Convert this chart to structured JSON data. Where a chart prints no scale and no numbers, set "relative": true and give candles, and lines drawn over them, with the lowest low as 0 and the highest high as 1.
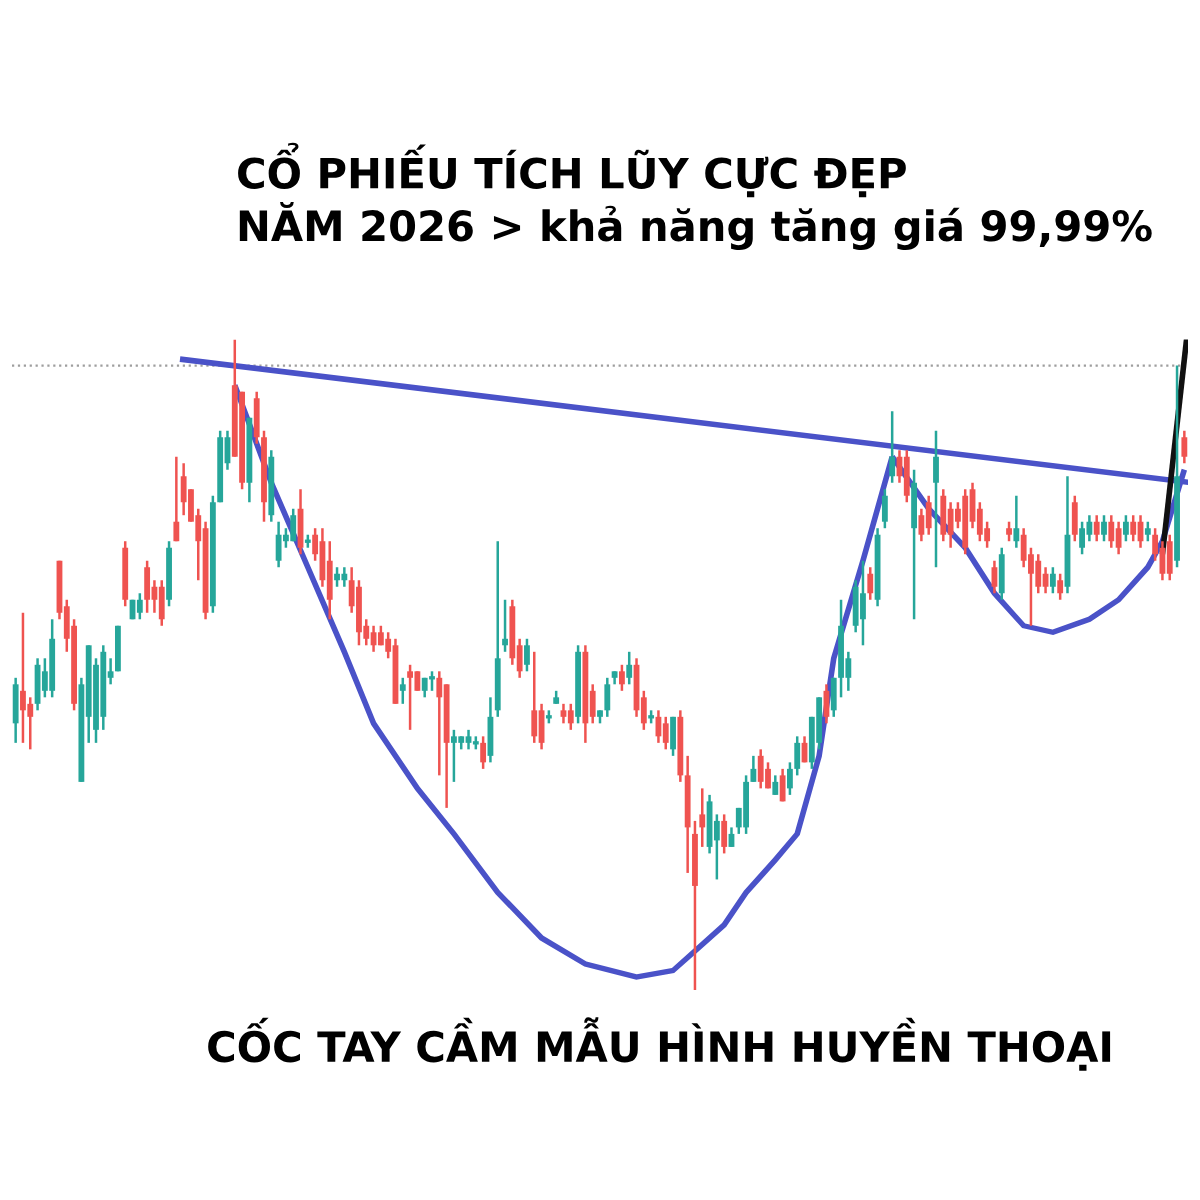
{
  "chart_data": {
    "type": "candlestick",
    "relative": true,
    "tick_labels": false,
    "title": "CỔ PHIẾU TÍCH LŨY CỰC ĐẸP",
    "subtitle": "NĂM 2026 > khả năng tăng giá 99,99%",
    "annotations": [
      "CỐC TAY CẦM MẪU HÌNH HUYỀN THOẠI"
    ],
    "categories": [
      null,
      null,
      null,
      null,
      null,
      null,
      null,
      null,
      null,
      null,
      null,
      null,
      null,
      null,
      null,
      null,
      null,
      null,
      null,
      null,
      null,
      null,
      null,
      null,
      null,
      null,
      null,
      null,
      null,
      null,
      null,
      null,
      null,
      null,
      null,
      null,
      null,
      null,
      null,
      null,
      null,
      null,
      null,
      null,
      null,
      null,
      null,
      null,
      null,
      null,
      null,
      null,
      null,
      null,
      null,
      null,
      null,
      null,
      null,
      null,
      null,
      null,
      null,
      null,
      null,
      null,
      null,
      null,
      null,
      null,
      null,
      null,
      null,
      null,
      null,
      null,
      null,
      null,
      null,
      null,
      null,
      null,
      null,
      null,
      null,
      null,
      null,
      null,
      null,
      null,
      null,
      null,
      null,
      null,
      null,
      null,
      null,
      null,
      null,
      null,
      null,
      null,
      null,
      null,
      null,
      null,
      null,
      null,
      null,
      null,
      null,
      null,
      null,
      null,
      null,
      null,
      null,
      null,
      null,
      null,
      null,
      null,
      null,
      null,
      null,
      null,
      null,
      null,
      null,
      null,
      null,
      null,
      null,
      null,
      null,
      null,
      null,
      null,
      null,
      null,
      null,
      null,
      null,
      null,
      null,
      null,
      null,
      null,
      null,
      null,
      null,
      null,
      null,
      null,
      null,
      null,
      null,
      null,
      null,
      null,
      null
    ],
    "ohlc": [
      [
        0.41,
        0.48,
        0.38,
        0.47
      ],
      [
        0.46,
        0.58,
        0.38,
        0.43
      ],
      [
        0.44,
        0.45,
        0.37,
        0.42
      ],
      [
        0.44,
        0.51,
        0.43,
        0.5
      ],
      [
        0.46,
        0.51,
        0.45,
        0.49
      ],
      [
        0.46,
        0.57,
        0.45,
        0.54
      ],
      [
        0.66,
        0.66,
        0.57,
        0.58
      ],
      [
        0.59,
        0.6,
        0.52,
        0.54
      ],
      [
        0.56,
        0.57,
        0.43,
        0.44
      ],
      [
        0.32,
        0.48,
        0.32,
        0.47
      ],
      [
        0.42,
        0.53,
        0.38,
        0.53
      ],
      [
        0.4,
        0.51,
        0.38,
        0.5
      ],
      [
        0.42,
        0.53,
        0.4,
        0.52
      ],
      [
        0.48,
        0.51,
        0.47,
        0.49
      ],
      [
        0.49,
        0.56,
        0.49,
        0.56
      ],
      [
        0.68,
        0.69,
        0.59,
        0.6
      ],
      [
        0.57,
        0.6,
        0.57,
        0.6
      ],
      [
        0.58,
        0.61,
        0.57,
        0.6
      ],
      [
        0.65,
        0.66,
        0.58,
        0.6
      ],
      [
        0.62,
        0.63,
        0.58,
        0.6
      ],
      [
        0.62,
        0.63,
        0.56,
        0.57
      ],
      [
        0.6,
        0.69,
        0.59,
        0.68
      ],
      [
        0.72,
        0.82,
        0.69,
        0.69
      ],
      [
        0.79,
        0.81,
        0.73,
        0.75
      ],
      [
        0.77,
        0.77,
        0.72,
        0.72
      ],
      [
        0.73,
        0.74,
        0.63,
        0.69
      ],
      [
        0.71,
        0.72,
        0.57,
        0.58
      ],
      [
        0.59,
        0.76,
        0.58,
        0.75
      ],
      [
        0.75,
        0.86,
        0.75,
        0.85
      ],
      [
        0.81,
        0.86,
        0.8,
        0.85
      ],
      [
        0.93,
        1.0,
        0.82,
        0.82
      ],
      [
        0.92,
        0.92,
        0.77,
        0.78
      ],
      [
        0.78,
        0.88,
        0.75,
        0.88
      ],
      [
        0.91,
        0.92,
        0.84,
        0.85
      ],
      [
        0.85,
        0.86,
        0.72,
        0.75
      ],
      [
        0.73,
        0.83,
        0.72,
        0.82
      ],
      [
        0.66,
        0.72,
        0.65,
        0.7
      ],
      [
        0.69,
        0.71,
        0.68,
        0.7
      ],
      [
        0.69,
        0.74,
        0.69,
        0.73
      ],
      [
        0.74,
        0.77,
        0.67,
        0.68
      ],
      [
        0.69,
        0.7,
        0.68,
        0.69
      ],
      [
        0.7,
        0.71,
        0.66,
        0.67
      ],
      [
        0.69,
        0.71,
        0.62,
        0.63
      ],
      [
        0.66,
        0.69,
        0.57,
        0.6
      ],
      [
        0.63,
        0.65,
        0.62,
        0.64
      ],
      [
        0.63,
        0.65,
        0.62,
        0.64
      ],
      [
        0.63,
        0.65,
        0.58,
        0.59
      ],
      [
        0.62,
        0.63,
        0.53,
        0.55
      ],
      [
        0.56,
        0.57,
        0.53,
        0.54
      ],
      [
        0.55,
        0.56,
        0.52,
        0.53
      ],
      [
        0.55,
        0.56,
        0.53,
        0.53
      ],
      [
        0.54,
        0.55,
        0.51,
        0.52
      ],
      [
        0.53,
        0.54,
        0.44,
        0.44
      ],
      [
        0.46,
        0.48,
        0.44,
        0.47
      ],
      [
        0.49,
        0.5,
        0.4,
        0.48
      ],
      [
        0.49,
        0.49,
        0.46,
        0.46
      ],
      [
        0.46,
        0.48,
        0.45,
        0.48
      ],
      [
        0.48,
        0.49,
        0.46,
        0.48
      ],
      [
        0.48,
        0.49,
        0.33,
        0.45
      ],
      [
        0.47,
        0.47,
        0.28,
        0.38
      ],
      [
        0.38,
        0.4,
        0.32,
        0.39
      ],
      [
        0.38,
        0.39,
        0.37,
        0.39
      ],
      [
        0.38,
        0.4,
        0.37,
        0.39
      ],
      [
        0.38,
        0.39,
        0.37,
        0.38
      ],
      [
        0.38,
        0.39,
        0.34,
        0.35
      ],
      [
        0.36,
        0.45,
        0.35,
        0.42
      ],
      [
        0.43,
        0.69,
        0.42,
        0.51
      ],
      [
        0.53,
        0.6,
        0.52,
        0.54
      ],
      [
        0.59,
        0.6,
        0.5,
        0.51
      ],
      [
        0.53,
        0.54,
        0.48,
        0.49
      ],
      [
        0.5,
        0.54,
        0.49,
        0.53
      ],
      [
        0.43,
        0.52,
        0.38,
        0.39
      ],
      [
        0.43,
        0.44,
        0.37,
        0.38
      ],
      [
        0.42,
        0.43,
        0.41,
        0.42
      ],
      [
        0.44,
        0.46,
        0.44,
        0.45
      ],
      [
        0.43,
        0.44,
        0.41,
        0.42
      ],
      [
        0.43,
        0.44,
        0.4,
        0.41
      ],
      [
        0.42,
        0.53,
        0.41,
        0.52
      ],
      [
        0.52,
        0.53,
        0.38,
        0.41
      ],
      [
        0.46,
        0.47,
        0.41,
        0.42
      ],
      [
        0.42,
        0.43,
        0.41,
        0.43
      ],
      [
        0.43,
        0.48,
        0.42,
        0.47
      ],
      [
        0.48,
        0.49,
        0.47,
        0.49
      ],
      [
        0.49,
        0.5,
        0.46,
        0.47
      ],
      [
        0.48,
        0.52,
        0.47,
        0.5
      ],
      [
        0.5,
        0.51,
        0.42,
        0.43
      ],
      [
        0.45,
        0.46,
        0.4,
        0.41
      ],
      [
        0.42,
        0.43,
        0.41,
        0.42
      ],
      [
        0.42,
        0.43,
        0.38,
        0.39
      ],
      [
        0.41,
        0.42,
        0.37,
        0.38
      ],
      [
        0.37,
        0.42,
        0.36,
        0.42
      ],
      [
        0.42,
        0.43,
        0.32,
        0.33
      ],
      [
        0.33,
        0.36,
        0.18,
        0.25
      ],
      [
        0.24,
        0.26,
        0.0,
        0.16
      ],
      [
        0.27,
        0.31,
        0.22,
        0.25
      ],
      [
        0.22,
        0.3,
        0.21,
        0.29
      ],
      [
        0.23,
        0.27,
        0.17,
        0.26
      ],
      [
        0.26,
        0.27,
        0.21,
        0.22
      ],
      [
        0.22,
        0.25,
        0.22,
        0.24
      ],
      [
        0.25,
        0.28,
        0.24,
        0.28
      ],
      [
        0.25,
        0.33,
        0.24,
        0.32
      ],
      [
        0.32,
        0.36,
        0.32,
        0.34
      ],
      [
        0.36,
        0.37,
        0.31,
        0.32
      ],
      [
        0.34,
        0.35,
        0.31,
        0.31
      ],
      [
        0.3,
        0.33,
        0.3,
        0.32
      ],
      [
        0.33,
        0.34,
        0.29,
        0.29
      ],
      [
        0.31,
        0.35,
        0.3,
        0.34
      ],
      [
        0.34,
        0.39,
        0.33,
        0.38
      ],
      [
        0.38,
        0.39,
        0.35,
        0.35
      ],
      [
        0.35,
        0.42,
        0.34,
        0.42
      ],
      [
        0.38,
        0.45,
        0.37,
        0.45
      ],
      [
        0.46,
        0.47,
        0.41,
        0.42
      ],
      [
        0.43,
        0.48,
        0.42,
        0.48
      ],
      [
        0.48,
        0.6,
        0.45,
        0.56
      ],
      [
        0.48,
        0.52,
        0.46,
        0.51
      ],
      [
        0.56,
        0.63,
        0.55,
        0.62
      ],
      [
        0.57,
        0.66,
        0.53,
        0.61
      ],
      [
        0.64,
        0.65,
        0.6,
        0.61
      ],
      [
        0.6,
        0.71,
        0.59,
        0.7
      ],
      [
        0.72,
        0.77,
        0.71,
        0.76
      ],
      [
        0.79,
        0.89,
        0.78,
        0.82
      ],
      [
        0.82,
        0.83,
        0.78,
        0.79
      ],
      [
        0.82,
        0.83,
        0.75,
        0.76
      ],
      [
        0.71,
        0.8,
        0.57,
        0.78
      ],
      [
        0.73,
        0.74,
        0.69,
        0.7
      ],
      [
        0.75,
        0.76,
        0.7,
        0.71
      ],
      [
        0.78,
        0.86,
        0.65,
        0.82
      ],
      [
        0.76,
        0.77,
        0.69,
        0.7
      ],
      [
        0.74,
        0.75,
        0.68,
        0.7
      ],
      [
        0.74,
        0.75,
        0.71,
        0.72
      ],
      [
        0.76,
        0.77,
        0.67,
        0.68
      ],
      [
        0.77,
        0.78,
        0.71,
        0.72
      ],
      [
        0.74,
        0.75,
        0.69,
        0.7
      ],
      [
        0.71,
        0.72,
        0.68,
        0.69
      ],
      [
        0.65,
        0.66,
        0.61,
        0.62
      ],
      [
        0.61,
        0.68,
        0.6,
        0.67
      ],
      [
        0.71,
        0.72,
        0.69,
        0.7
      ],
      [
        0.69,
        0.76,
        0.68,
        0.71
      ],
      [
        0.7,
        0.71,
        0.65,
        0.66
      ],
      [
        0.67,
        0.68,
        0.56,
        0.64
      ],
      [
        0.66,
        0.67,
        0.61,
        0.62
      ],
      [
        0.64,
        0.65,
        0.61,
        0.62
      ],
      [
        0.62,
        0.65,
        0.61,
        0.64
      ],
      [
        0.63,
        0.64,
        0.6,
        0.61
      ],
      [
        0.62,
        0.79,
        0.61,
        0.7
      ],
      [
        0.75,
        0.76,
        0.69,
        0.7
      ],
      [
        0.68,
        0.72,
        0.67,
        0.71
      ],
      [
        0.7,
        0.73,
        0.69,
        0.72
      ],
      [
        0.72,
        0.73,
        0.69,
        0.7
      ],
      [
        0.7,
        0.73,
        0.69,
        0.72
      ],
      [
        0.72,
        0.73,
        0.68,
        0.69
      ],
      [
        0.71,
        0.72,
        0.67,
        0.68
      ],
      [
        0.7,
        0.73,
        0.69,
        0.72
      ],
      [
        0.72,
        0.73,
        0.69,
        0.7
      ],
      [
        0.72,
        0.73,
        0.68,
        0.69
      ],
      [
        0.7,
        0.72,
        0.69,
        0.71
      ],
      [
        0.7,
        0.71,
        0.66,
        0.67
      ],
      [
        0.68,
        0.69,
        0.63,
        0.64
      ],
      [
        0.69,
        0.7,
        0.63,
        0.64
      ],
      [
        0.66,
        0.96,
        0.65,
        0.79
      ],
      [
        0.85,
        0.86,
        0.81,
        0.82
      ]
    ],
    "colors": [
      "#26a69a",
      "#ef5350",
      "#ef5350",
      "#26a69a",
      "#26a69a",
      "#26a69a",
      "#ef5350",
      "#ef5350",
      "#ef5350",
      "#26a69a",
      "#26a69a",
      "#26a69a",
      "#26a69a",
      "#26a69a",
      "#26a69a",
      "#ef5350",
      "#26a69a",
      "#26a69a",
      "#ef5350",
      "#ef5350",
      "#ef5350",
      "#26a69a",
      "#ef5350",
      "#ef5350",
      "#ef5350",
      "#ef5350",
      "#ef5350",
      "#26a69a",
      "#26a69a",
      "#26a69a",
      "#ef5350",
      "#ef5350",
      "#26a69a",
      "#ef5350",
      "#ef5350",
      "#26a69a",
      "#26a69a",
      "#26a69a",
      "#26a69a",
      "#ef5350",
      "#26a69a",
      "#ef5350",
      "#ef5350",
      "#ef5350",
      "#26a69a",
      "#26a69a",
      "#ef5350",
      "#ef5350",
      "#ef5350",
      "#ef5350",
      "#ef5350",
      "#ef5350",
      "#ef5350",
      "#26a69a",
      "#ef5350",
      "#ef5350",
      "#26a69a",
      "#26a69a",
      "#ef5350",
      "#ef5350",
      "#26a69a",
      "#26a69a",
      "#26a69a",
      "#26a69a",
      "#ef5350",
      "#26a69a",
      "#26a69a",
      "#26a69a",
      "#ef5350",
      "#ef5350",
      "#26a69a",
      "#ef5350",
      "#ef5350",
      "#26a69a",
      "#26a69a",
      "#ef5350",
      "#ef5350",
      "#26a69a",
      "#ef5350",
      "#ef5350",
      "#26a69a",
      "#26a69a",
      "#26a69a",
      "#ef5350",
      "#26a69a",
      "#ef5350",
      "#ef5350",
      "#26a69a",
      "#ef5350",
      "#ef5350",
      "#26a69a",
      "#ef5350",
      "#ef5350",
      "#ef5350",
      "#ef5350",
      "#26a69a",
      "#26a69a",
      "#ef5350",
      "#26a69a",
      "#26a69a",
      "#26a69a",
      "#26a69a",
      "#ef5350",
      "#ef5350",
      "#26a69a",
      "#ef5350",
      "#26a69a",
      "#26a69a",
      "#ef5350",
      "#26a69a",
      "#26a69a",
      "#ef5350",
      "#26a69a",
      "#26a69a",
      "#26a69a",
      "#26a69a",
      "#26a69a",
      "#ef5350",
      "#26a69a",
      "#26a69a",
      "#26a69a",
      "#ef5350",
      "#ef5350",
      "#26a69a",
      "#ef5350",
      "#ef5350",
      "#26a69a",
      "#ef5350",
      "#ef5350",
      "#ef5350",
      "#ef5350",
      "#ef5350",
      "#ef5350",
      "#ef5350",
      "#ef5350",
      "#26a69a",
      "#ef5350",
      "#26a69a",
      "#ef5350",
      "#ef5350",
      "#ef5350",
      "#ef5350",
      "#26a69a",
      "#ef5350",
      "#26a69a",
      "#ef5350",
      "#26a69a",
      "#26a69a",
      "#ef5350",
      "#26a69a",
      "#ef5350",
      "#ef5350",
      "#26a69a",
      "#ef5350",
      "#ef5350",
      "#26a69a",
      "#ef5350",
      "#ef5350",
      "#ef5350",
      "#26a69a",
      "#ef5350"
    ],
    "ref_lines": [
      {
        "axis": "y",
        "value": 0.96,
        "color": "#9e9e9e",
        "line_style": "dotted"
      }
    ]
  }
}
